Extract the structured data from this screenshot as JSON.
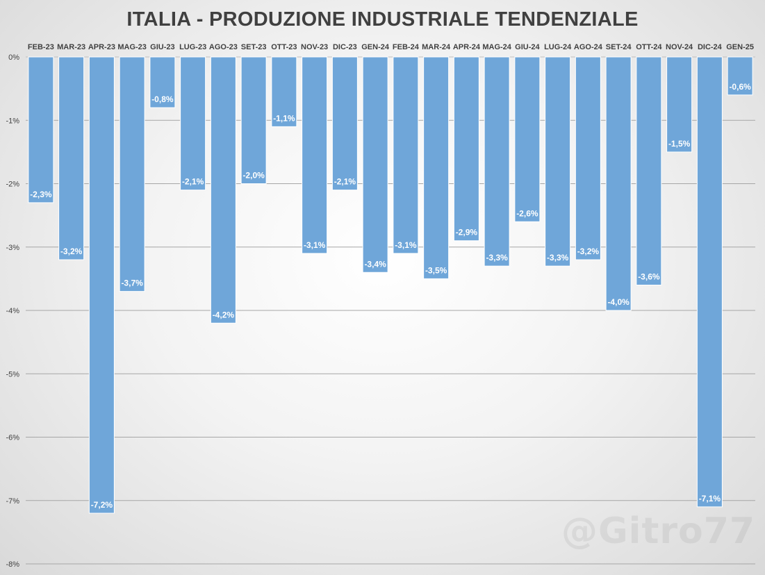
{
  "chart_data": {
    "type": "bar",
    "title": "ITALIA - PRODUZIONE INDUSTRIALE TENDENZIALE",
    "xlabel": "",
    "ylabel": "",
    "categories": [
      "FEB-23",
      "MAR-23",
      "APR-23",
      "MAG-23",
      "GIU-23",
      "LUG-23",
      "AGO-23",
      "SET-23",
      "OTT-23",
      "NOV-23",
      "DIC-23",
      "GEN-24",
      "FEB-24",
      "MAR-24",
      "APR-24",
      "MAG-24",
      "GIU-24",
      "LUG-24",
      "AGO-24",
      "SET-24",
      "OTT-24",
      "NOV-24",
      "DIC-24",
      "GEN-25"
    ],
    "values": [
      -2.3,
      -3.2,
      -7.2,
      -3.7,
      -0.8,
      -2.1,
      -4.2,
      -2.0,
      -1.1,
      -3.1,
      -2.1,
      -3.4,
      -3.1,
      -3.5,
      -2.9,
      -3.3,
      -2.6,
      -3.3,
      -3.2,
      -4.0,
      -3.6,
      -1.5,
      -7.1,
      -0.6
    ],
    "data_labels": [
      "-2,3%",
      "-3,2%",
      "-7,2%",
      "-3,7%",
      "-0,8%",
      "-2,1%",
      "-4,2%",
      "-2,0%",
      "-1,1%",
      "-3,1%",
      "-2,1%",
      "-3,4%",
      "-3,1%",
      "-3,5%",
      "-2,9%",
      "-3,3%",
      "-2,6%",
      "-3,3%",
      "-3,2%",
      "-4,0%",
      "-3,6%",
      "-1,5%",
      "-7,1%",
      "-0,6%"
    ],
    "ylim": [
      -8,
      0
    ],
    "y_ticks": [
      0,
      -1,
      -2,
      -3,
      -4,
      -5,
      -6,
      -7,
      -8
    ],
    "y_tick_labels": [
      "0%",
      "-1%",
      "-2%",
      "-3%",
      "-4%",
      "-5%",
      "-6%",
      "-7%",
      "-8%"
    ],
    "grid": true,
    "legend": "none",
    "bar_color": "#6fa6d9",
    "x_axis_position": "top"
  },
  "watermark": "@Gitro77"
}
